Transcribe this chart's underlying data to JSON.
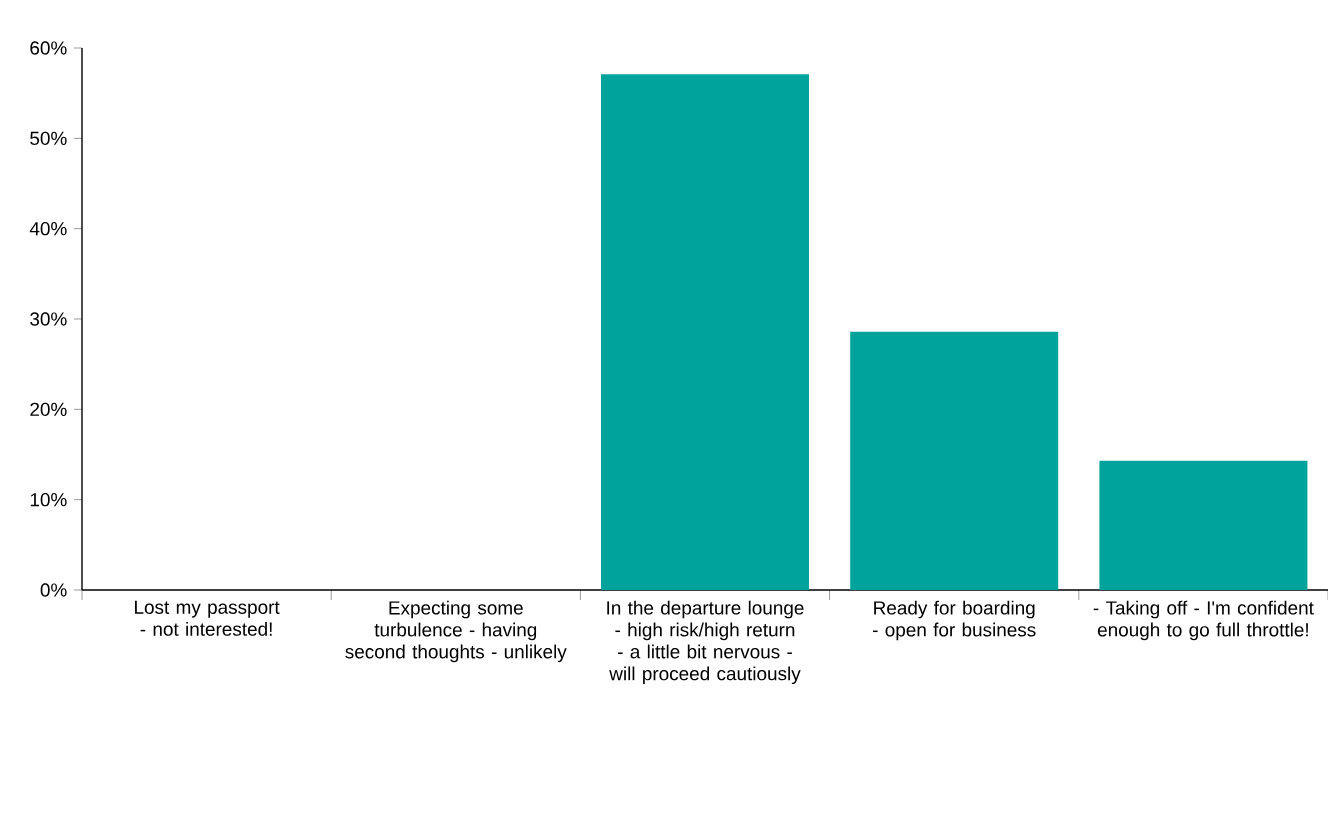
{
  "chart_data": {
    "type": "bar",
    "categories": [
      "Lost my passport - not interested!",
      "Expecting some turbulence - having second thoughts - unlikely",
      "In the departure lounge - high risk/high return - a little bit nervous - will proceed cautiously",
      "Ready for boarding - open for business",
      "- Taking off - I'm confident enough to go full throttle!"
    ],
    "values": [
      0,
      0,
      57.1,
      28.6,
      14.3
    ],
    "color": "#00a29c",
    "ylim": [
      0,
      60
    ],
    "yticks": [
      {
        "value": 0,
        "label": "0%"
      },
      {
        "value": 10,
        "label": "10%"
      },
      {
        "value": 20,
        "label": "20%"
      },
      {
        "value": 30,
        "label": "30%"
      },
      {
        "value": 40,
        "label": "40%"
      },
      {
        "value": 50,
        "label": "50%"
      },
      {
        "value": 60,
        "label": "60%"
      }
    ],
    "grid": false
  }
}
